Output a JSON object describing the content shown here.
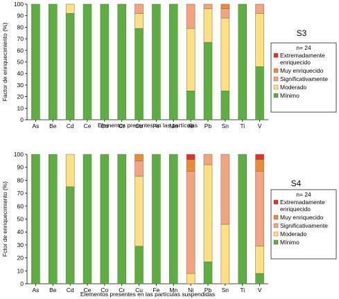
{
  "colors": {
    "minimo": "#5BAE3F",
    "moderado": "#FFE082",
    "significativamente": "#F5A57E",
    "muy_enriquecido": "#EE8A33",
    "extremadamente_enriquecido": "#E0302A",
    "bar_stroke": "#6B6B4A"
  },
  "chart_data": [
    {
      "type": "bar",
      "stacked": true,
      "title": "S3",
      "n_label": "n= 24",
      "xlabel": "Elementos presentes en las partículas",
      "ylabel": "Factor de enriquecimiento (%)",
      "ylim": [
        0,
        100
      ],
      "yticks": [
        0,
        10,
        20,
        30,
        40,
        50,
        60,
        70,
        80,
        90,
        100
      ],
      "grid": false,
      "legend_position": "right",
      "categories": [
        "As",
        "Be",
        "Cd",
        "Ce",
        "Co",
        "Cr",
        "Cu",
        "Fe",
        "Mn",
        "Ni",
        "Pb",
        "Sn",
        "Ti",
        "V"
      ],
      "legend": [
        {
          "key": "extremadamente_enriquecido",
          "label": "Extremadamente enriquecido"
        },
        {
          "key": "muy_enriquecido",
          "label": "Muy enriquecido"
        },
        {
          "key": "significativamente",
          "label": "Significativamente"
        },
        {
          "key": "moderado",
          "label": "Moderado"
        },
        {
          "key": "minimo",
          "label": "Mínimo"
        }
      ],
      "series": [
        {
          "key": "minimo",
          "values": [
            100,
            100,
            92,
            100,
            100,
            100,
            79,
            100,
            100,
            25,
            67,
            25,
            100,
            46
          ]
        },
        {
          "key": "moderado",
          "values": [
            0,
            0,
            8,
            0,
            0,
            0,
            13,
            0,
            0,
            54,
            29,
            63,
            0,
            46
          ]
        },
        {
          "key": "significativamente",
          "values": [
            0,
            0,
            0,
            0,
            0,
            0,
            8,
            0,
            0,
            21,
            4,
            8,
            0,
            8
          ]
        },
        {
          "key": "muy_enriquecido",
          "values": [
            0,
            0,
            0,
            0,
            0,
            0,
            0,
            0,
            0,
            0,
            0,
            4,
            0,
            0
          ]
        },
        {
          "key": "extremadamente_enriquecido",
          "values": [
            0,
            0,
            0,
            0,
            0,
            0,
            0,
            0,
            0,
            0,
            0,
            0,
            0,
            0
          ]
        }
      ]
    },
    {
      "type": "bar",
      "stacked": true,
      "title": "S4",
      "n_label": "n= 24",
      "xlabel": "Elementos presentes en las partículas suspendidas",
      "ylabel": "Fctor de enriquecimiento (%)",
      "ylim": [
        0,
        100
      ],
      "yticks": [
        0,
        10,
        20,
        30,
        40,
        50,
        60,
        70,
        80,
        90,
        100
      ],
      "grid": false,
      "legend_position": "right",
      "categories": [
        "As",
        "Be",
        "Cd",
        "Ce",
        "Co",
        "Cr",
        "Cu",
        "Fe",
        "Mn",
        "Ni",
        "Pb",
        "Sn",
        "Ti",
        "V"
      ],
      "legend": [
        {
          "key": "extremadamente_enriquecido",
          "label": "Extremadamente enriquecido"
        },
        {
          "key": "muy_enriquecido",
          "label": "Muy enriquecido"
        },
        {
          "key": "significativamente",
          "label": "Significativamente"
        },
        {
          "key": "moderado",
          "label": "Moderado"
        },
        {
          "key": "minimo",
          "label": "Mínimo"
        }
      ],
      "series": [
        {
          "key": "minimo",
          "values": [
            100,
            100,
            75,
            100,
            100,
            100,
            29,
            100,
            100,
            0,
            17,
            0,
            100,
            8
          ]
        },
        {
          "key": "moderado",
          "values": [
            0,
            0,
            25,
            0,
            0,
            0,
            54,
            0,
            0,
            8,
            75,
            46,
            0,
            21
          ]
        },
        {
          "key": "significativamente",
          "values": [
            0,
            0,
            0,
            0,
            0,
            0,
            12,
            0,
            0,
            79,
            8,
            54,
            0,
            58
          ]
        },
        {
          "key": "muy_enriquecido",
          "values": [
            0,
            0,
            0,
            0,
            0,
            0,
            5,
            0,
            0,
            9,
            0,
            0,
            0,
            9
          ]
        },
        {
          "key": "extremadamente_enriquecido",
          "values": [
            0,
            0,
            0,
            0,
            0,
            0,
            0,
            0,
            0,
            4,
            0,
            0,
            0,
            4
          ]
        }
      ]
    }
  ]
}
